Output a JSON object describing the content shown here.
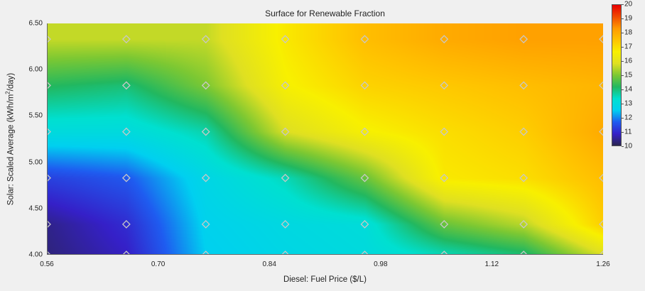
{
  "chart_data": {
    "type": "heatmap",
    "title": "Surface for Renewable Fraction",
    "xlabel": "Diesel: Fuel Price ($/L)",
    "ylabel_prefix": "Solar: Scaled Average (kWh/m",
    "ylabel_sup": "2",
    "ylabel_suffix": "/day)",
    "x_ticks": [
      "0.56",
      "0.70",
      "0.84",
      "0.98",
      "1.12",
      "1.26"
    ],
    "y_ticks": [
      "4.00",
      "4.50",
      "5.00",
      "5.50",
      "6.00",
      "6.50"
    ],
    "xlim": [
      0.56,
      1.26
    ],
    "ylim": [
      4.0,
      6.5
    ],
    "x": [
      0.56,
      0.66,
      0.76,
      0.86,
      0.96,
      1.06,
      1.16,
      1.26
    ],
    "y": [
      4.0,
      4.33,
      4.83,
      5.33,
      5.83,
      6.33
    ],
    "z": [
      [
        10.3,
        10.8,
        12.5,
        12.8,
        13.0,
        13.5,
        14.0,
        15.8
      ],
      [
        10.4,
        11.0,
        12.6,
        12.9,
        13.1,
        14.8,
        15.5,
        17.3
      ],
      [
        11.3,
        11.6,
        12.8,
        13.5,
        14.8,
        16.8,
        17.0,
        17.6
      ],
      [
        13.0,
        13.0,
        13.6,
        15.8,
        16.6,
        17.0,
        17.3,
        18.0
      ],
      [
        14.2,
        14.0,
        15.0,
        16.6,
        17.2,
        17.4,
        17.6,
        17.8
      ],
      [
        15.6,
        15.6,
        15.6,
        16.8,
        17.6,
        18.0,
        18.2,
        18.2
      ]
    ],
    "colorbar": {
      "ticks": [
        "10",
        "11",
        "12",
        "13",
        "14",
        "15",
        "16",
        "17",
        "18",
        "19",
        "20"
      ],
      "min": 10,
      "max": 20,
      "colors": [
        "#2a2550",
        "#3520c8",
        "#1f5cf0",
        "#00d0f0",
        "#00e0d0",
        "#22b860",
        "#7cc833",
        "#dfe022",
        "#f8f000",
        "#ffc300",
        "#ff9a00",
        "#f04a00",
        "#e80000"
      ]
    },
    "marker_color": "#c8c8c8"
  }
}
